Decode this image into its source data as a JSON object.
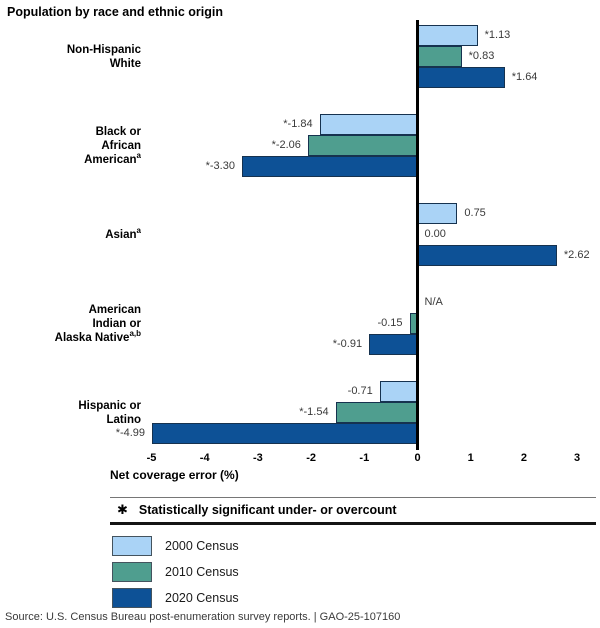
{
  "title": "Population by race and ethnic origin",
  "chart_data": {
    "type": "bar",
    "orientation": "horizontal",
    "title": "Population by race and ethnic origin",
    "xlabel": "Net coverage error (%)",
    "xlim": [
      -5,
      3
    ],
    "xticks": [
      -5,
      -4,
      -3,
      -2,
      -1,
      0,
      1,
      2,
      3
    ],
    "grid": false,
    "legend_position": "bottom-left",
    "categories": [
      {
        "lines": [
          "Non-Hispanic",
          "White"
        ],
        "sup": ""
      },
      {
        "lines": [
          "Black or",
          "African",
          "American"
        ],
        "sup": "a"
      },
      {
        "lines": [
          "Asian"
        ],
        "sup": "a"
      },
      {
        "lines": [
          "American",
          "Indian or",
          "Alaska Native"
        ],
        "sup": "a,b"
      },
      {
        "lines": [
          "Hispanic or",
          "Latino"
        ],
        "sup": ""
      }
    ],
    "series": [
      {
        "name": "2000 Census",
        "color": "#aad3f6",
        "values": [
          1.13,
          -1.84,
          0.75,
          null,
          -0.71
        ],
        "labels": [
          "*1.13",
          "*-1.84",
          "0.75",
          "N/A",
          "-0.71"
        ]
      },
      {
        "name": "2010 Census",
        "color": "#4f9e8f",
        "values": [
          0.83,
          -2.06,
          0,
          -0.15,
          -1.54
        ],
        "labels": [
          "*0.83",
          "*-2.06",
          "0.00",
          "-0.15",
          "*-1.54"
        ]
      },
      {
        "name": "2020 Census",
        "color": "#0d5196",
        "values": [
          1.64,
          -3.3,
          2.62,
          -0.91,
          -4.99
        ],
        "labels": [
          "*1.64",
          "*-3.30",
          "*2.62",
          "*-0.91",
          "*-4.99"
        ]
      }
    ]
  },
  "footnote": {
    "marker": "✱",
    "text": "Statistically significant under- or overcount"
  },
  "source": "Source: U.S. Census Bureau post-enumeration survey reports.  |  GAO-25-107160"
}
